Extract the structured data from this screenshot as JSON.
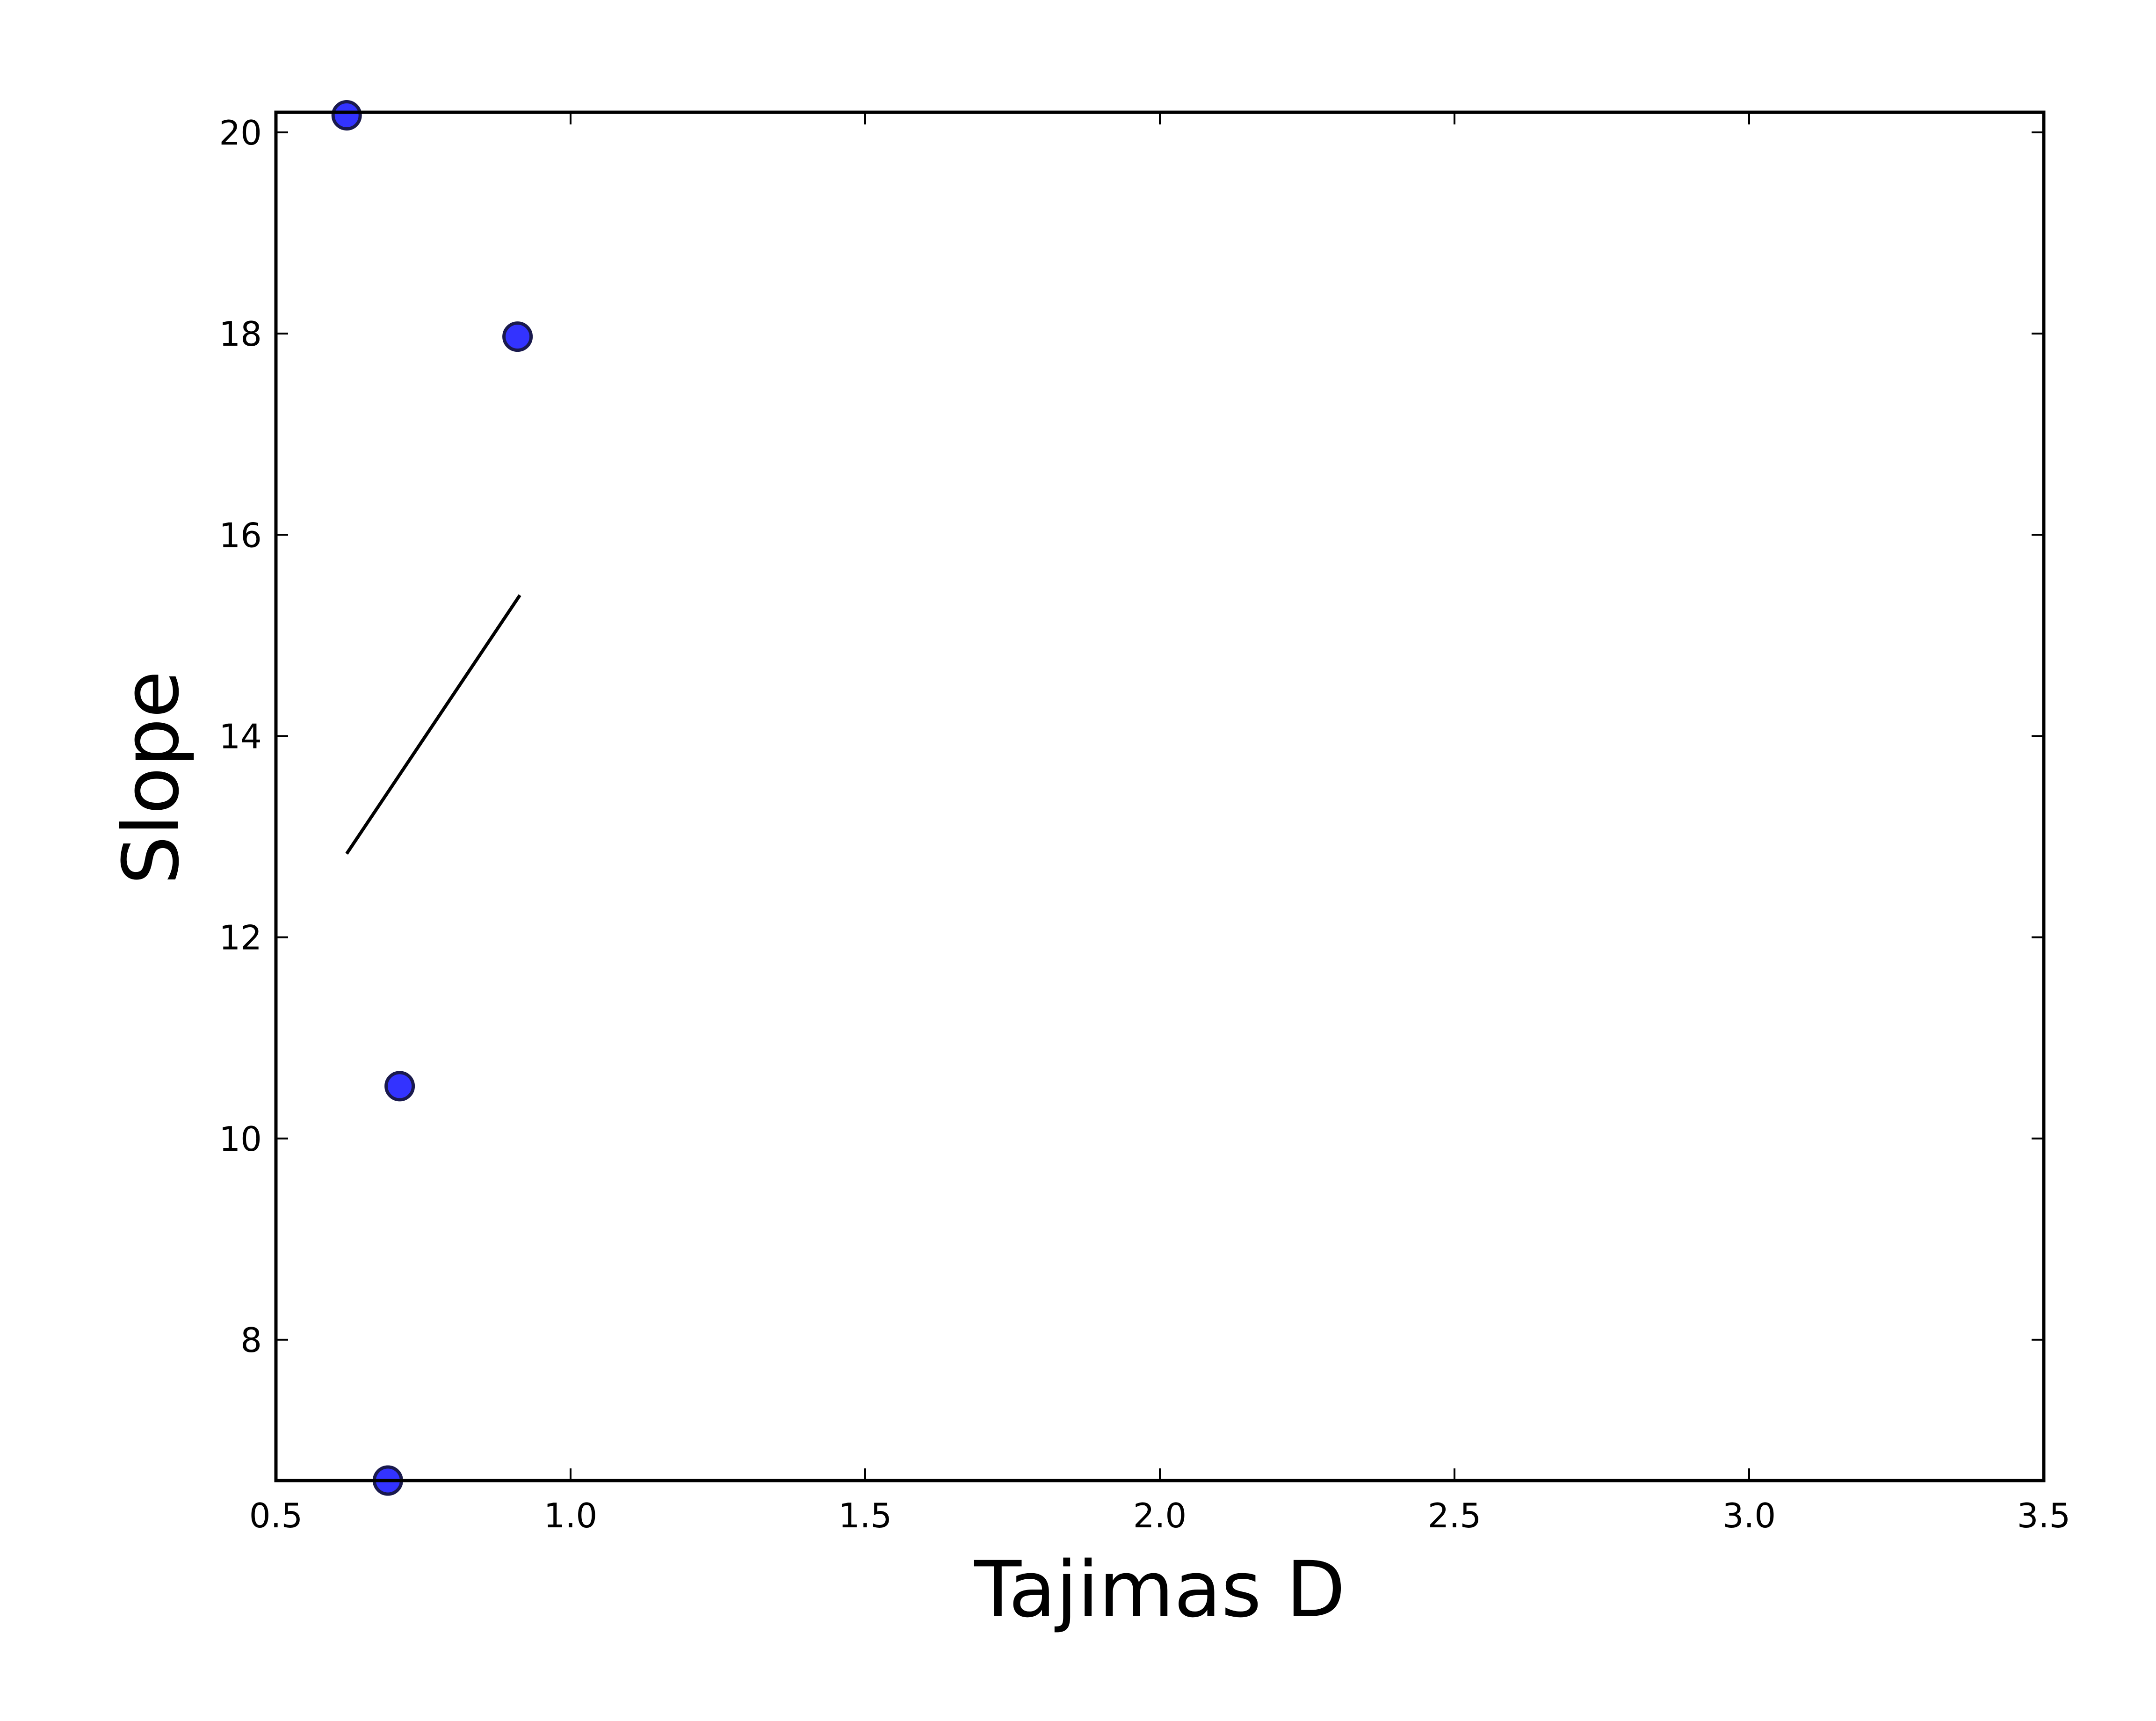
{
  "chart_data": {
    "type": "scatter",
    "title": "",
    "xlabel": "Tajimas D",
    "ylabel": "Slope",
    "xlim": [
      0.5,
      3.5
    ],
    "ylim": [
      6.6,
      20.2
    ],
    "xticks": [
      0.5,
      1.0,
      1.5,
      2.0,
      2.5,
      3.0,
      3.5
    ],
    "xtick_labels": [
      "0.5",
      "1.0",
      "1.5",
      "2.0",
      "2.5",
      "3.0",
      "3.5"
    ],
    "yticks": [
      8,
      10,
      12,
      14,
      16,
      18,
      20
    ],
    "ytick_labels": [
      "8",
      "10",
      "12",
      "14",
      "16",
      "18",
      "20"
    ],
    "grid": false,
    "series": [
      {
        "kind": "scatter",
        "color": "#3333ff",
        "edgecolor": "#1a1a4d",
        "x": [
          0.62,
          0.91,
          0.71,
          0.69
        ],
        "y": [
          20.17,
          17.97,
          10.52,
          6.6
        ]
      },
      {
        "kind": "line",
        "color": "#000000",
        "x": [
          0.62,
          0.914
        ],
        "y": [
          12.83,
          15.4
        ]
      }
    ]
  }
}
